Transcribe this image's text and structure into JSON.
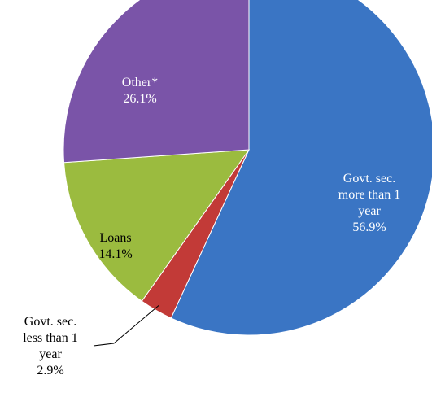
{
  "chart_data": {
    "type": "pie",
    "slices": [
      {
        "label": [
          "Govt. sec.",
          "more than 1",
          "year"
        ],
        "value": 56.9,
        "value_label": "56.9%",
        "color": "#3a75c4",
        "text_color": "#ffffff",
        "label_position": "inside"
      },
      {
        "label": [
          "Govt. sec.",
          "less than 1",
          "year"
        ],
        "value": 2.9,
        "value_label": "2.9%",
        "color": "#c23a37",
        "text_color": "#000000",
        "label_position": "outside-leader"
      },
      {
        "label": [
          "Loans"
        ],
        "value": 14.1,
        "value_label": "14.1%",
        "color": "#9bbb3f",
        "text_color": "#000000",
        "label_position": "inside"
      },
      {
        "label": [
          "Other*"
        ],
        "value": 26.1,
        "value_label": "26.1%",
        "color": "#7a54a8",
        "text_color": "#ffffff",
        "label_position": "inside"
      }
    ],
    "start_angle": "12 o'clock",
    "direction": "clockwise",
    "legend": "none"
  }
}
